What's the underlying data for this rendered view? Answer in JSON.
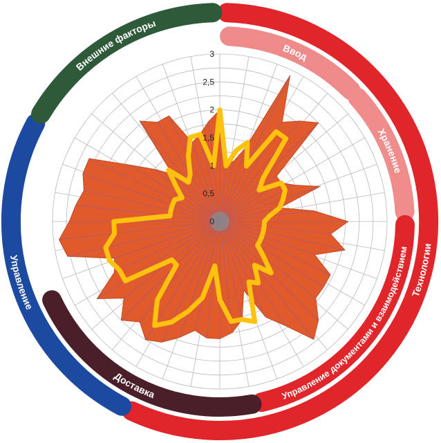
{
  "chart_data": {
    "type": "radar",
    "ylim": [
      0,
      3
    ],
    "ticks": [
      "0",
      "0,5",
      "1",
      "1,5",
      "2",
      "2,5",
      "3"
    ],
    "tick_values": [
      0,
      0.5,
      1,
      1.5,
      2,
      2.5,
      3
    ],
    "grid": true,
    "series": [
      {
        "values": [
          2.0,
          1.1,
          1.1,
          1.4,
          2.9,
          2.1,
          2.3,
          2.5,
          1.3,
          1.3,
          1.5,
          1.9,
          1.1,
          1.7,
          2.3,
          2.0,
          2.3,
          1.8,
          2.2,
          2.2,
          2.2,
          2.5,
          2.7,
          2.2,
          1.9,
          1.3,
          1.8,
          2.0,
          2.1,
          2.1,
          2.0,
          2.2,
          2.4,
          2.5,
          2.3,
          2.5,
          2.2,
          2.6,
          2.1,
          2.0,
          2.8,
          2.9,
          2.7,
          2.6,
          2.5,
          2.6,
          2.6,
          1.9,
          1.5,
          1.2,
          2.3,
          2.1,
          2.1,
          1.5,
          1.6,
          1.8
        ],
        "color": "#e05a2b"
      },
      {
        "values": [
          2.0,
          1.0,
          1.3,
          1.5,
          1.1,
          1.9,
          1.9,
          1.1,
          0.9,
          1.3,
          1.3,
          1.2,
          1.1,
          0.9,
          0.8,
          0.8,
          0.8,
          0.8,
          0.8,
          0.8,
          1.0,
          1.3,
          1.0,
          1.3,
          1.2,
          1.9,
          1.8,
          1.8,
          1.4,
          0.8,
          1.4,
          1.7,
          2.0,
          2.2,
          1.8,
          1.1,
          1.1,
          2.0,
          2.0,
          2.1,
          2.1,
          1.9,
          1.9,
          0.9,
          0.9,
          0.9,
          0.9,
          0.8,
          1.0,
          1.3,
          0.9,
          1.0,
          1.3,
          1.6,
          1.6,
          1.0
        ],
        "color": "#ffc20e"
      }
    ],
    "groups": [
      {
        "label": "Ввод",
        "color": "#ef8a8a",
        "level": "inner"
      },
      {
        "label": "Хранение",
        "color": "#f08c8c",
        "level": "inner"
      },
      {
        "label": "Управление документами и взаимодействием",
        "color": "#e0262b",
        "level": "inner"
      },
      {
        "label": "Технологии",
        "color": "#e0262b",
        "level": "outer"
      },
      {
        "label": "Доставка",
        "color": "#4a1f2a",
        "level": "inner"
      },
      {
        "label": "Управление",
        "color": "#1b4aa0",
        "level": "outer"
      },
      {
        "label": "Внешние факторы",
        "color": "#2f5a3a",
        "level": "outer"
      }
    ]
  }
}
